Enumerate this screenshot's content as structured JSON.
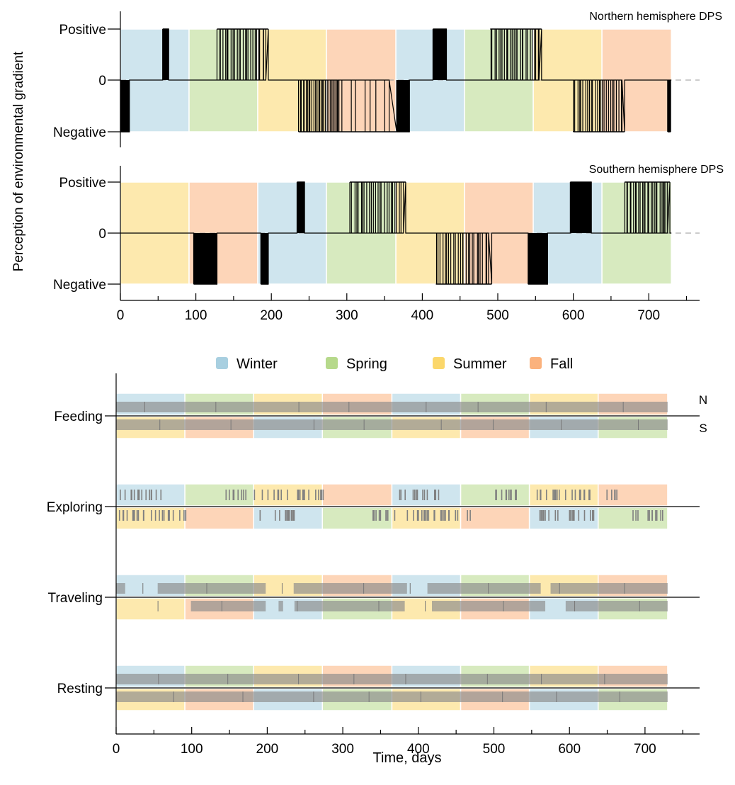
{
  "chart_data": [
    {
      "type": "step-line",
      "title": "Northern hemisphere DPS",
      "ylabel": "Perception of environmental gradient",
      "yticks": [
        "Positive",
        "0",
        "Negative"
      ],
      "xlim": [
        0,
        770
      ],
      "season_bands": [
        {
          "season": "Winter",
          "start": 0,
          "end": 91
        },
        {
          "season": "Spring",
          "start": 91,
          "end": 182
        },
        {
          "season": "Summer",
          "start": 182,
          "end": 273
        },
        {
          "season": "Fall",
          "start": 273,
          "end": 365
        },
        {
          "season": "Winter",
          "start": 365,
          "end": 456
        },
        {
          "season": "Spring",
          "start": 456,
          "end": 547
        },
        {
          "season": "Summer",
          "start": 547,
          "end": 638
        },
        {
          "season": "Fall",
          "start": 638,
          "end": 730
        }
      ],
      "switch_clusters": [
        {
          "start": 0,
          "end": 12,
          "state": "negative",
          "density": "dense"
        },
        {
          "start": 56,
          "end": 64,
          "state": "positive",
          "density": "dense"
        },
        {
          "start": 128,
          "end": 196,
          "state": "positive",
          "density": "striped"
        },
        {
          "start": 236,
          "end": 288,
          "state": "negative",
          "density": "striped"
        },
        {
          "start": 288,
          "end": 366,
          "state": "negative",
          "density": "sparse"
        },
        {
          "start": 366,
          "end": 383,
          "state": "negative",
          "density": "dense"
        },
        {
          "start": 414,
          "end": 432,
          "state": "positive",
          "density": "dense"
        },
        {
          "start": 490,
          "end": 558,
          "state": "positive",
          "density": "striped"
        },
        {
          "start": 600,
          "end": 668,
          "state": "negative",
          "density": "striped"
        },
        {
          "start": 725,
          "end": 729,
          "state": "negative",
          "density": "sparse"
        }
      ]
    },
    {
      "type": "step-line",
      "title": "Southern hemisphere DPS",
      "yticks": [
        "Positive",
        "0",
        "Negative"
      ],
      "xticks": [
        "0",
        "100",
        "200",
        "300",
        "400",
        "500",
        "600",
        "700"
      ],
      "xlim": [
        0,
        770
      ],
      "season_bands": [
        {
          "season": "Summer",
          "start": 0,
          "end": 91
        },
        {
          "season": "Fall",
          "start": 91,
          "end": 182
        },
        {
          "season": "Winter",
          "start": 182,
          "end": 273
        },
        {
          "season": "Spring",
          "start": 273,
          "end": 365
        },
        {
          "season": "Summer",
          "start": 365,
          "end": 456
        },
        {
          "season": "Fall",
          "start": 456,
          "end": 547
        },
        {
          "season": "Winter",
          "start": 547,
          "end": 638
        },
        {
          "season": "Spring",
          "start": 638,
          "end": 730
        }
      ],
      "switch_clusters": [
        {
          "start": 97,
          "end": 128,
          "state": "negative",
          "density": "dense"
        },
        {
          "start": 186,
          "end": 196,
          "state": "negative",
          "density": "dense"
        },
        {
          "start": 234,
          "end": 244,
          "state": "positive",
          "density": "dense"
        },
        {
          "start": 304,
          "end": 378,
          "state": "positive",
          "density": "striped"
        },
        {
          "start": 418,
          "end": 492,
          "state": "negative",
          "density": "striped"
        },
        {
          "start": 540,
          "end": 566,
          "state": "negative",
          "density": "dense"
        },
        {
          "start": 596,
          "end": 624,
          "state": "positive",
          "density": "dense"
        },
        {
          "start": 668,
          "end": 728,
          "state": "positive",
          "density": "striped"
        }
      ]
    },
    {
      "type": "event-raster",
      "xlabel": "Time, days",
      "xticks": [
        "0",
        "100",
        "200",
        "300",
        "400",
        "500",
        "600",
        "700"
      ],
      "xlim": [
        0,
        770
      ],
      "legend": [
        {
          "label": "Winter",
          "color": "#a8cfe0"
        },
        {
          "label": "Spring",
          "color": "#b6d98b"
        },
        {
          "label": "Summer",
          "color": "#fbd76b"
        },
        {
          "label": "Fall",
          "color": "#fbb27d"
        }
      ],
      "hemisphere_labels": [
        "N",
        "S"
      ],
      "north_seasons": [
        "Winter",
        "Spring",
        "Summer",
        "Fall",
        "Winter",
        "Spring",
        "Summer",
        "Fall"
      ],
      "south_seasons": [
        "Summer",
        "Fall",
        "Winter",
        "Spring",
        "Summer",
        "Fall",
        "Winter",
        "Spring"
      ],
      "behaviors": [
        {
          "name": "Feeding",
          "north": [
            [
              0,
              730
            ]
          ],
          "south": [
            [
              0,
              730
            ]
          ]
        },
        {
          "name": "Exploring",
          "north_events": "dense in winter-spring transitions, sparse in summer",
          "north_clusters": [
            [
              5,
              63
            ],
            [
              140,
              172
            ],
            [
              182,
              275
            ],
            [
              367,
              428
            ],
            [
              500,
              538
            ],
            [
              553,
              632
            ],
            [
              645,
              665
            ]
          ],
          "south_clusters": [
            [
              2,
              95
            ],
            [
              190,
              240
            ],
            [
              340,
              376
            ],
            [
              383,
              480
            ],
            [
              560,
              637
            ],
            [
              683,
              728
            ]
          ],
          "north": [],
          "south": []
        },
        {
          "name": "Traveling",
          "north": [
            [
              0,
              12
            ],
            [
              55,
              198
            ],
            [
              235,
              385
            ],
            [
              412,
              562
            ],
            [
              575,
              730
            ]
          ],
          "south": [
            [
              99,
              198
            ],
            [
              215,
              221
            ],
            [
              236,
              382
            ],
            [
              418,
              568
            ],
            [
              595,
              730
            ]
          ]
        },
        {
          "name": "Resting",
          "north": [
            [
              0,
              730
            ]
          ],
          "south": [
            [
              0,
              730
            ]
          ]
        }
      ]
    }
  ]
}
